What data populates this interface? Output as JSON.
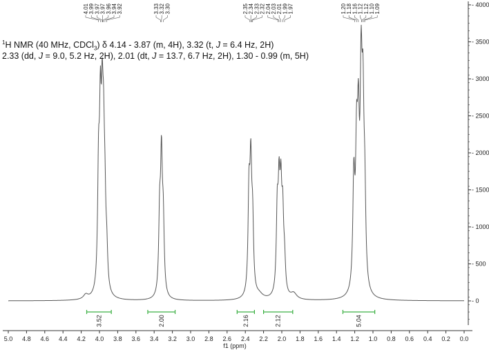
{
  "chart_data": {
    "type": "line",
    "xlabel": "f1 (ppm)",
    "x_ticks": [
      "5.0",
      "4.8",
      "4.6",
      "4.4",
      "4.2",
      "4.0",
      "3.8",
      "3.6",
      "3.4",
      "3.2",
      "3.0",
      "2.8",
      "2.6",
      "2.4",
      "2.2",
      "2.0",
      "1.8",
      "1.6",
      "1.4",
      "1.2",
      "1.0",
      "0.8",
      "0.6",
      "0.4",
      "0.2",
      "0.0"
    ],
    "y_ticks": [
      "4000",
      "3500",
      "3000",
      "2500",
      "2000",
      "1500",
      "1000",
      "500",
      "0"
    ],
    "xlim": [
      5.0,
      0.0
    ],
    "ylim": [
      -320,
      4050
    ],
    "spectrum_peaks": [
      {
        "ppm": 4.15,
        "height": 60,
        "width": 0.03
      },
      {
        "ppm": 4.01,
        "height": 1500,
        "width": 0.012
      },
      {
        "ppm": 3.99,
        "height": 2050,
        "width": 0.012
      },
      {
        "ppm": 3.97,
        "height": 1900,
        "width": 0.012
      },
      {
        "ppm": 3.955,
        "height": 1500,
        "width": 0.012
      },
      {
        "ppm": 3.94,
        "height": 900,
        "width": 0.012
      },
      {
        "ppm": 3.92,
        "height": 450,
        "width": 0.012
      },
      {
        "ppm": 3.34,
        "height": 1000,
        "width": 0.012
      },
      {
        "ppm": 3.32,
        "height": 1750,
        "width": 0.012
      },
      {
        "ppm": 3.3,
        "height": 900,
        "width": 0.012
      },
      {
        "ppm": 2.36,
        "height": 1300,
        "width": 0.012
      },
      {
        "ppm": 2.34,
        "height": 1600,
        "width": 0.012
      },
      {
        "ppm": 2.32,
        "height": 900,
        "width": 0.012
      },
      {
        "ppm": 2.25,
        "height": 60,
        "width": 0.05
      },
      {
        "ppm": 2.05,
        "height": 1050,
        "width": 0.012
      },
      {
        "ppm": 2.03,
        "height": 1250,
        "width": 0.012
      },
      {
        "ppm": 2.01,
        "height": 1200,
        "width": 0.012
      },
      {
        "ppm": 1.99,
        "height": 950,
        "width": 0.012
      },
      {
        "ppm": 1.97,
        "height": 400,
        "width": 0.012
      },
      {
        "ppm": 1.87,
        "height": 80,
        "width": 0.04
      },
      {
        "ppm": 1.21,
        "height": 1450,
        "width": 0.013
      },
      {
        "ppm": 1.18,
        "height": 1650,
        "width": 0.013
      },
      {
        "ppm": 1.16,
        "height": 1850,
        "width": 0.013
      },
      {
        "ppm": 1.13,
        "height": 2550,
        "width": 0.013
      },
      {
        "ppm": 1.11,
        "height": 2100,
        "width": 0.013
      },
      {
        "ppm": 1.09,
        "height": 1100,
        "width": 0.013
      }
    ],
    "peak_label_groups": [
      {
        "labels": [
          "4.01",
          "3.99",
          "3.97",
          "3.97",
          "3.96",
          "3.94",
          "3.92"
        ],
        "ppm": [
          4.01,
          3.99,
          3.97,
          3.965,
          3.96,
          3.94,
          3.92
        ]
      },
      {
        "labels": [
          "3.33",
          "3.32",
          "3.30"
        ],
        "ppm": [
          3.33,
          3.32,
          3.3
        ]
      },
      {
        "labels": [
          "2.35",
          "2.34",
          "2.33",
          "2.32",
          "2.04",
          "2.03",
          "2.01",
          "1.99",
          "1.97"
        ],
        "ppm": [
          2.35,
          2.34,
          2.33,
          2.32,
          2.04,
          2.03,
          2.01,
          1.99,
          1.97
        ]
      },
      {
        "labels": [
          "1.20",
          "1.18",
          "1.16",
          "1.12",
          "1.12",
          "1.10",
          "1.09"
        ],
        "ppm": [
          1.2,
          1.18,
          1.16,
          1.125,
          1.12,
          1.1,
          1.09
        ]
      }
    ],
    "integrals": [
      {
        "from": 4.14,
        "to": 3.87,
        "value": "3.52"
      },
      {
        "from": 3.47,
        "to": 3.17,
        "value": "2.00"
      },
      {
        "from": 2.49,
        "to": 2.3,
        "value": "2.16"
      },
      {
        "from": 2.2,
        "to": 1.88,
        "value": "2.12"
      },
      {
        "from": 1.33,
        "to": 0.98,
        "value": "5.04"
      }
    ],
    "caption_line1": {
      "pre": "H NMR (40 MHz, CDCl",
      "sup": "1",
      "sub": "3",
      "mid": ") δ 4.14 - 3.87 (m, 4H), 3.32 (t, ",
      "j": "J",
      "post": " = 6.4 Hz, 2H)"
    },
    "caption_line2": {
      "a": "2.33 (dd, ",
      "j1": "J",
      "b": " = 9.0, 5.2 Hz, 2H), 2.01 (dt, ",
      "j2": "J",
      "c": " = 13.7, 6.7 Hz, 2H), 1.30 - 0.99 (m, 5H)"
    },
    "colors": {
      "spectrum": "#555555",
      "integral": "#3cb043",
      "axis": "#333333",
      "text": "#222222"
    }
  }
}
